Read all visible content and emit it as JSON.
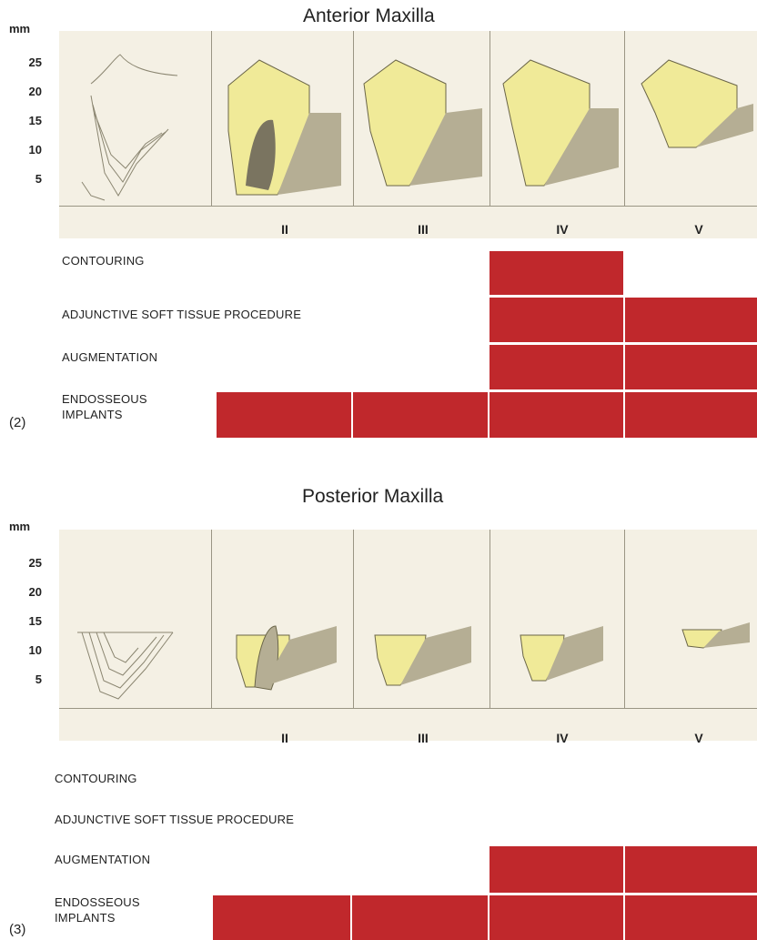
{
  "colors": {
    "bar": "#c0282c",
    "bone": "#f0ea98",
    "panel": "#f4f0e4"
  },
  "sections": [
    {
      "title": "Anterior Maxilla",
      "unit": "mm",
      "ticks": [
        "25",
        "20",
        "15",
        "10",
        "5"
      ],
      "classes": [
        "II",
        "III",
        "IV",
        "V"
      ],
      "figure_number": "(2)",
      "procedures": [
        {
          "label": "CONTOURING",
          "filled": [
            "IV"
          ]
        },
        {
          "label": "ADJUNCTIVE SOFT TISSUE PROCEDURE",
          "filled": [
            "IV",
            "V"
          ]
        },
        {
          "label": "AUGMENTATION",
          "filled": [
            "IV",
            "V"
          ]
        },
        {
          "label": "ENDOSSEOUS IMPLANTS",
          "filled": [
            "II",
            "III",
            "IV",
            "V"
          ]
        }
      ]
    },
    {
      "title": "Posterior Maxilla",
      "unit": "mm",
      "ticks": [
        "25",
        "20",
        "15",
        "10",
        "5"
      ],
      "classes": [
        "II",
        "III",
        "IV",
        "V"
      ],
      "figure_number": "(3)",
      "procedures": [
        {
          "label": "CONTOURING",
          "filled": []
        },
        {
          "label": "ADJUNCTIVE SOFT TISSUE PROCEDURE",
          "filled": []
        },
        {
          "label": "AUGMENTATION",
          "filled": [
            "IV",
            "V"
          ]
        },
        {
          "label": "ENDOSSEOUS IMPLANTS",
          "filled": [
            "II",
            "III",
            "IV",
            "V"
          ]
        }
      ]
    }
  ]
}
